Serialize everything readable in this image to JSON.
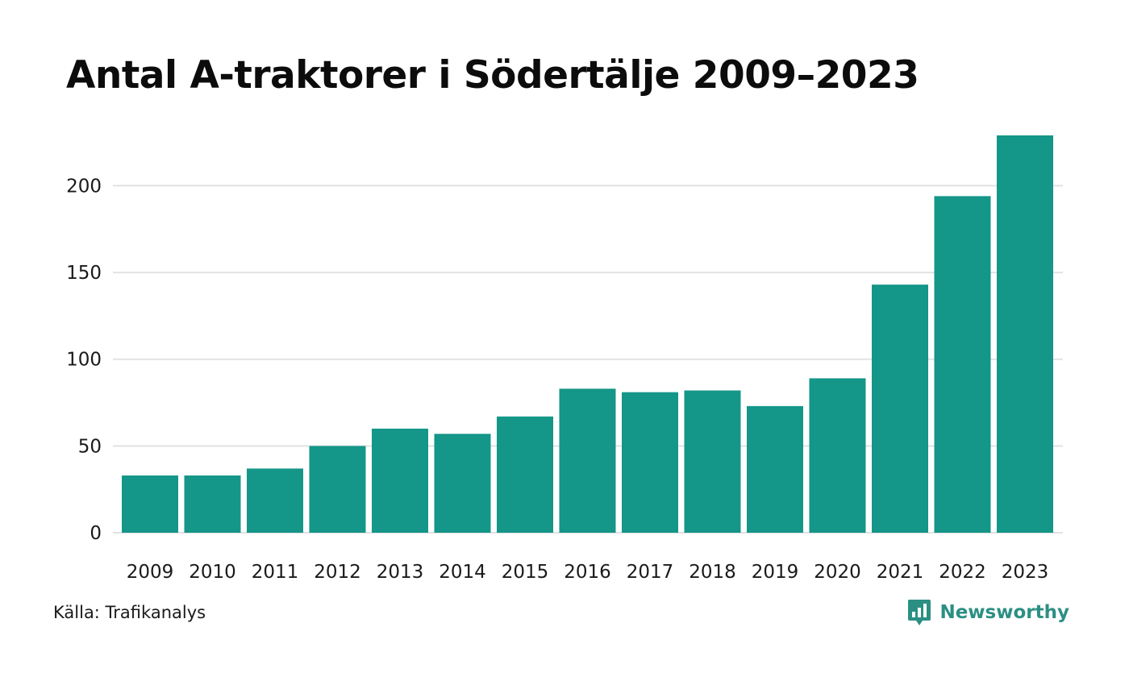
{
  "chart_data": {
    "type": "bar",
    "title": "Antal A-traktorer i Södertälje 2009–2023",
    "categories": [
      "2009",
      "2010",
      "2011",
      "2012",
      "2013",
      "2014",
      "2015",
      "2016",
      "2017",
      "2018",
      "2019",
      "2020",
      "2021",
      "2022",
      "2023"
    ],
    "values": [
      33,
      33,
      37,
      50,
      60,
      57,
      67,
      83,
      81,
      82,
      73,
      89,
      143,
      194,
      229
    ],
    "xlabel": "",
    "ylabel": "",
    "ylim": [
      0,
      229
    ],
    "yticks": [
      0,
      50,
      100,
      150,
      200
    ],
    "grid": true,
    "legend": "none",
    "colors": {
      "bar": "#149688",
      "grid": "#e2e2e2"
    }
  },
  "footer": {
    "source": "Källa: Trafikanalys",
    "brand": "Newsworthy",
    "brand_icon": "bar-chart-speech-bubble-icon",
    "brand_color": "#2c8f84"
  }
}
